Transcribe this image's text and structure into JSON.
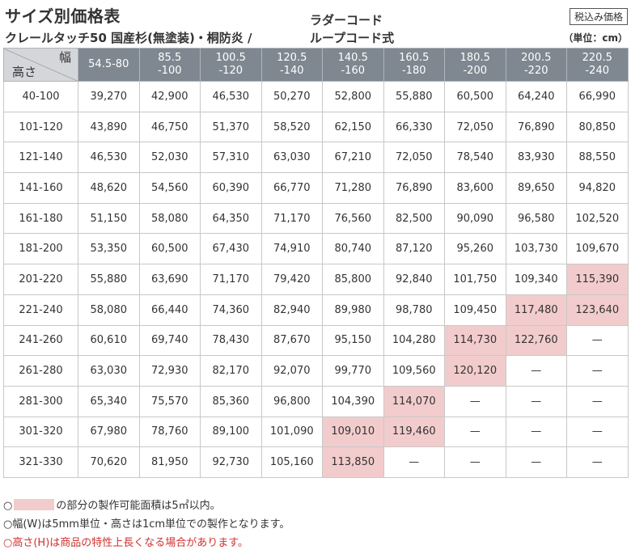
{
  "header": {
    "title": "サイズ別価格表",
    "product": "クレールタッチ50 国産杉(無塗装)・桐防炎 /",
    "cord_upper": "ラダーコード",
    "cord_lower": "ループコード式",
    "tax_label": "税込み価格",
    "unit_label": "（単位：cm）"
  },
  "table": {
    "corner_width": "幅",
    "corner_height": "高さ",
    "columns": [
      [
        "54.5-80",
        ""
      ],
      [
        "85.5",
        "-100"
      ],
      [
        "100.5",
        "-120"
      ],
      [
        "120.5",
        "-140"
      ],
      [
        "140.5",
        "-160"
      ],
      [
        "160.5",
        "-180"
      ],
      [
        "180.5",
        "-200"
      ],
      [
        "200.5",
        "-220"
      ],
      [
        "220.5",
        "-240"
      ]
    ],
    "rows": [
      {
        "label": "40-100",
        "values": [
          "39,270",
          "42,900",
          "46,530",
          "50,270",
          "52,800",
          "55,880",
          "60,500",
          "64,240",
          "66,990"
        ],
        "highlight": [],
        "red": [
          0
        ]
      },
      {
        "label": "101-120",
        "values": [
          "43,890",
          "46,750",
          "51,370",
          "58,520",
          "62,150",
          "66,330",
          "72,050",
          "76,890",
          "80,850"
        ],
        "highlight": [],
        "red": []
      },
      {
        "label": "121-140",
        "values": [
          "46,530",
          "52,030",
          "57,310",
          "63,030",
          "67,210",
          "72,050",
          "78,540",
          "83,930",
          "88,550"
        ],
        "highlight": [],
        "red": []
      },
      {
        "label": "141-160",
        "values": [
          "48,620",
          "54,560",
          "60,390",
          "66,770",
          "71,280",
          "76,890",
          "83,600",
          "89,650",
          "94,820"
        ],
        "highlight": [],
        "red": []
      },
      {
        "label": "161-180",
        "values": [
          "51,150",
          "58,080",
          "64,350",
          "71,170",
          "76,560",
          "82,500",
          "90,090",
          "96,580",
          "102,520"
        ],
        "highlight": [],
        "red": []
      },
      {
        "label": "181-200",
        "values": [
          "53,350",
          "60,500",
          "67,430",
          "74,910",
          "80,740",
          "87,120",
          "95,260",
          "103,730",
          "109,670"
        ],
        "highlight": [],
        "red": []
      },
      {
        "label": "201-220",
        "values": [
          "55,880",
          "63,690",
          "71,170",
          "79,420",
          "85,800",
          "92,840",
          "101,750",
          "109,340",
          "115,390"
        ],
        "highlight": [
          8
        ],
        "red": []
      },
      {
        "label": "221-240",
        "values": [
          "58,080",
          "66,440",
          "74,360",
          "82,940",
          "89,980",
          "98,780",
          "109,450",
          "117,480",
          "123,640"
        ],
        "highlight": [
          7,
          8
        ],
        "red": []
      },
      {
        "label": "241-260",
        "values": [
          "60,610",
          "69,740",
          "78,430",
          "87,670",
          "95,150",
          "104,280",
          "114,730",
          "122,760",
          "—"
        ],
        "highlight": [
          6,
          7
        ],
        "red": []
      },
      {
        "label": "261-280",
        "values": [
          "63,030",
          "72,930",
          "82,170",
          "92,070",
          "99,770",
          "109,560",
          "120,120",
          "—",
          "—"
        ],
        "highlight": [
          6
        ],
        "red": []
      },
      {
        "label": "281-300",
        "values": [
          "65,340",
          "75,570",
          "85,360",
          "96,800",
          "104,390",
          "114,070",
          "—",
          "—",
          "—"
        ],
        "highlight": [
          5
        ],
        "red": []
      },
      {
        "label": "301-320",
        "values": [
          "67,980",
          "78,760",
          "89,100",
          "101,090",
          "109,010",
          "119,460",
          "—",
          "—",
          "—"
        ],
        "highlight": [
          4,
          5
        ],
        "red": []
      },
      {
        "label": "321-330",
        "values": [
          "70,620",
          "81,950",
          "92,730",
          "105,160",
          "113,850",
          "—",
          "—",
          "—",
          "—"
        ],
        "highlight": [
          4
        ],
        "red": []
      }
    ]
  },
  "notes": {
    "note1_prefix": "○",
    "note1_text": "の部分の製作可能面積は5㎡以内。",
    "note2": "○幅(W)は5mm単位・高さは1cm単位での製作となります。",
    "note3": "○高さ(H)は商品の特性上長くなる場合があります。"
  }
}
